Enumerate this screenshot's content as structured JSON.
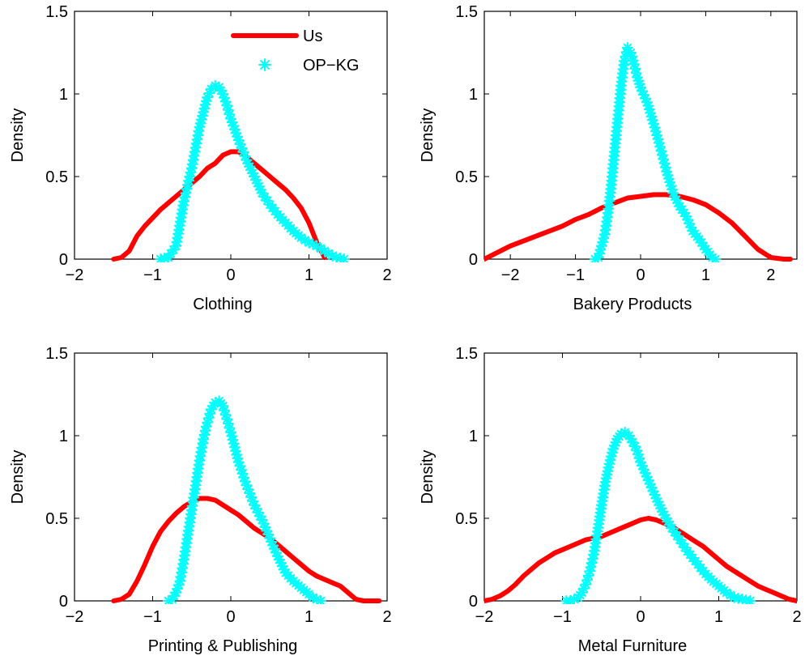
{
  "colors": {
    "us": "#ff0000",
    "opkg": "#00ffff"
  },
  "legend": {
    "placement": "top-right",
    "entries": [
      "Us",
      "OP−KG"
    ]
  },
  "chart_data": [
    {
      "type": "line",
      "xlabel": "Clothing",
      "ylabel": "Density",
      "xlim": [
        -2,
        2
      ],
      "ylim": [
        0,
        1.5
      ],
      "xticks": [
        "−2",
        "−1",
        "0",
        "1",
        "2"
      ],
      "yticks": [
        "0",
        "0.5",
        "1",
        "1.5"
      ],
      "series": [
        {
          "name": "Us",
          "style": "line",
          "x": [
            -1.5,
            -1.4,
            -1.3,
            -1.2,
            -1.1,
            -1.0,
            -0.9,
            -0.8,
            -0.7,
            -0.6,
            -0.5,
            -0.4,
            -0.3,
            -0.2,
            -0.1,
            0.0,
            0.1,
            0.2,
            0.3,
            0.4,
            0.5,
            0.6,
            0.7,
            0.8,
            0.9,
            1.0,
            1.1,
            1.2
          ],
          "y": [
            0,
            0.01,
            0.05,
            0.14,
            0.2,
            0.25,
            0.3,
            0.34,
            0.38,
            0.42,
            0.46,
            0.5,
            0.55,
            0.58,
            0.63,
            0.65,
            0.65,
            0.62,
            0.58,
            0.54,
            0.5,
            0.46,
            0.42,
            0.37,
            0.31,
            0.22,
            0.1,
            0.01
          ]
        },
        {
          "name": "OP−KG",
          "style": "markers",
          "x": [
            -0.9,
            -0.8,
            -0.7,
            -0.6,
            -0.5,
            -0.4,
            -0.3,
            -0.25,
            -0.2,
            -0.15,
            -0.1,
            -0.05,
            0.0,
            0.1,
            0.2,
            0.3,
            0.4,
            0.5,
            0.6,
            0.7,
            0.8,
            0.9,
            1.0,
            1.1,
            1.2,
            1.3,
            1.4,
            1.45
          ],
          "y": [
            0,
            0.01,
            0.08,
            0.35,
            0.55,
            0.8,
            0.98,
            1.03,
            1.05,
            1.04,
            1.0,
            0.93,
            0.85,
            0.72,
            0.6,
            0.5,
            0.4,
            0.33,
            0.27,
            0.22,
            0.17,
            0.13,
            0.1,
            0.08,
            0.05,
            0.02,
            0.005,
            0
          ]
        }
      ]
    },
    {
      "type": "line",
      "xlabel": "Bakery Products",
      "ylabel": "Density",
      "xlim": [
        -2.4,
        2.4
      ],
      "ylim": [
        0,
        1.5
      ],
      "xticks": [
        "−2",
        "−1",
        "0",
        "1",
        "2"
      ],
      "yticks": [
        "0",
        "0.5",
        "1",
        "1.5"
      ],
      "series": [
        {
          "name": "Us",
          "style": "line",
          "x": [
            -2.4,
            -2.2,
            -2.0,
            -1.8,
            -1.6,
            -1.4,
            -1.2,
            -1.0,
            -0.8,
            -0.6,
            -0.4,
            -0.2,
            0.0,
            0.2,
            0.4,
            0.6,
            0.8,
            1.0,
            1.2,
            1.4,
            1.6,
            1.8,
            2.0,
            2.2,
            2.3
          ],
          "y": [
            0,
            0.04,
            0.08,
            0.11,
            0.14,
            0.17,
            0.2,
            0.24,
            0.27,
            0.31,
            0.34,
            0.37,
            0.38,
            0.39,
            0.39,
            0.38,
            0.36,
            0.33,
            0.28,
            0.22,
            0.14,
            0.06,
            0.01,
            0,
            0
          ]
        },
        {
          "name": "OP−KG",
          "style": "markers",
          "x": [
            -0.7,
            -0.65,
            -0.6,
            -0.55,
            -0.5,
            -0.45,
            -0.4,
            -0.35,
            -0.3,
            -0.25,
            -0.2,
            -0.15,
            -0.1,
            -0.05,
            0.0,
            0.1,
            0.2,
            0.3,
            0.4,
            0.5,
            0.6,
            0.7,
            0.8,
            0.9,
            1.0,
            1.1,
            1.15
          ],
          "y": [
            0,
            0.01,
            0.08,
            0.15,
            0.28,
            0.45,
            0.65,
            0.85,
            1.05,
            1.2,
            1.28,
            1.25,
            1.18,
            1.1,
            1.04,
            0.95,
            0.82,
            0.68,
            0.53,
            0.4,
            0.32,
            0.26,
            0.17,
            0.12,
            0.06,
            0.01,
            0
          ]
        }
      ]
    },
    {
      "type": "line",
      "xlabel": "Printing & Publishing",
      "ylabel": "Density",
      "xlim": [
        -2,
        2
      ],
      "ylim": [
        0,
        1.5
      ],
      "xticks": [
        "−2",
        "−1",
        "0",
        "1",
        "2"
      ],
      "yticks": [
        "0",
        "0.5",
        "1",
        "1.5"
      ],
      "series": [
        {
          "name": "Us",
          "style": "line",
          "x": [
            -1.5,
            -1.4,
            -1.3,
            -1.2,
            -1.1,
            -1.0,
            -0.9,
            -0.8,
            -0.7,
            -0.6,
            -0.5,
            -0.4,
            -0.3,
            -0.2,
            -0.1,
            0.0,
            0.1,
            0.2,
            0.3,
            0.4,
            0.5,
            0.6,
            0.7,
            0.8,
            0.9,
            1.0,
            1.1,
            1.2,
            1.3,
            1.4,
            1.5,
            1.6,
            1.7,
            1.8,
            1.9
          ],
          "y": [
            0,
            0.01,
            0.04,
            0.12,
            0.22,
            0.33,
            0.42,
            0.48,
            0.53,
            0.57,
            0.6,
            0.62,
            0.62,
            0.61,
            0.58,
            0.55,
            0.52,
            0.48,
            0.44,
            0.41,
            0.38,
            0.34,
            0.3,
            0.26,
            0.22,
            0.18,
            0.15,
            0.13,
            0.11,
            0.09,
            0.05,
            0.01,
            0,
            0,
            0
          ]
        },
        {
          "name": "OP−KG",
          "style": "markers",
          "x": [
            -0.8,
            -0.75,
            -0.7,
            -0.65,
            -0.6,
            -0.55,
            -0.5,
            -0.45,
            -0.4,
            -0.35,
            -0.3,
            -0.25,
            -0.2,
            -0.15,
            -0.1,
            -0.05,
            0.0,
            0.05,
            0.1,
            0.2,
            0.3,
            0.4,
            0.5,
            0.6,
            0.7,
            0.8,
            0.9,
            1.0,
            1.05,
            1.1,
            1.15
          ],
          "y": [
            0,
            0.01,
            0.05,
            0.12,
            0.25,
            0.4,
            0.55,
            0.7,
            0.85,
            0.98,
            1.08,
            1.16,
            1.2,
            1.21,
            1.18,
            1.1,
            1.02,
            0.93,
            0.84,
            0.7,
            0.58,
            0.49,
            0.38,
            0.27,
            0.17,
            0.12,
            0.08,
            0.04,
            0.02,
            0.01,
            0
          ]
        }
      ]
    },
    {
      "type": "line",
      "xlabel": "Metal Furniture",
      "ylabel": "Density",
      "xlim": [
        -2,
        2
      ],
      "ylim": [
        0,
        1.5
      ],
      "xticks": [
        "−2",
        "−1",
        "0",
        "1",
        "2"
      ],
      "yticks": [
        "0",
        "0.5",
        "1",
        "1.5"
      ],
      "series": [
        {
          "name": "Us",
          "style": "line",
          "x": [
            -2.0,
            -1.9,
            -1.8,
            -1.7,
            -1.6,
            -1.5,
            -1.4,
            -1.3,
            -1.2,
            -1.1,
            -1.0,
            -0.9,
            -0.8,
            -0.7,
            -0.6,
            -0.5,
            -0.4,
            -0.3,
            -0.2,
            -0.1,
            0.0,
            0.1,
            0.2,
            0.3,
            0.4,
            0.5,
            0.6,
            0.7,
            0.8,
            0.9,
            1.0,
            1.1,
            1.2,
            1.3,
            1.4,
            1.5,
            1.6,
            1.7,
            1.8,
            1.9,
            2.0
          ],
          "y": [
            0,
            0.01,
            0.03,
            0.06,
            0.1,
            0.15,
            0.19,
            0.23,
            0.26,
            0.29,
            0.31,
            0.33,
            0.35,
            0.37,
            0.38,
            0.39,
            0.41,
            0.43,
            0.45,
            0.47,
            0.49,
            0.5,
            0.49,
            0.47,
            0.45,
            0.42,
            0.39,
            0.36,
            0.33,
            0.29,
            0.25,
            0.21,
            0.18,
            0.15,
            0.12,
            0.09,
            0.07,
            0.05,
            0.03,
            0.01,
            0
          ]
        },
        {
          "name": "OP−KG",
          "style": "markers",
          "x": [
            -0.95,
            -0.9,
            -0.85,
            -0.8,
            -0.75,
            -0.7,
            -0.65,
            -0.6,
            -0.55,
            -0.5,
            -0.45,
            -0.4,
            -0.35,
            -0.3,
            -0.25,
            -0.2,
            -0.15,
            -0.1,
            -0.05,
            0.0,
            0.1,
            0.2,
            0.3,
            0.4,
            0.5,
            0.6,
            0.7,
            0.8,
            0.9,
            1.0,
            1.1,
            1.2,
            1.3,
            1.4
          ],
          "y": [
            0,
            0,
            0.01,
            0.02,
            0.05,
            0.1,
            0.18,
            0.28,
            0.42,
            0.58,
            0.72,
            0.83,
            0.92,
            0.98,
            1.01,
            1.02,
            1.0,
            0.96,
            0.91,
            0.84,
            0.73,
            0.62,
            0.52,
            0.44,
            0.37,
            0.3,
            0.24,
            0.18,
            0.13,
            0.09,
            0.05,
            0.02,
            0.01,
            0
          ]
        }
      ]
    }
  ]
}
